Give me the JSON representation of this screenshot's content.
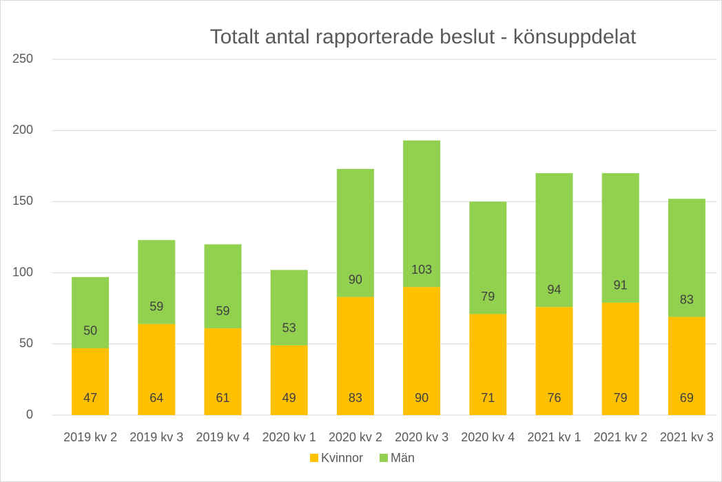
{
  "chart_data": {
    "type": "stacked_bar",
    "title": "Totalt antal rapporterade beslut - könsuppdelat",
    "categories": [
      "2019 kv 2",
      "2019 kv 3",
      "2019 kv 4",
      "2020 kv 1",
      "2020 kv 2",
      "2020 kv 3",
      "2020 kv 4",
      "2021 kv 1",
      "2021 kv 2",
      "2021 kv 3"
    ],
    "series": [
      {
        "name": "Kvinnor",
        "color": "#ffc000",
        "values": [
          47,
          64,
          61,
          49,
          83,
          90,
          71,
          76,
          79,
          69
        ]
      },
      {
        "name": "Män",
        "color": "#92d050",
        "values": [
          50,
          59,
          59,
          53,
          90,
          103,
          79,
          94,
          91,
          83
        ]
      }
    ],
    "ylim": [
      0,
      250
    ],
    "yticks": [
      0,
      50,
      100,
      150,
      200,
      250
    ],
    "grid": true,
    "legend": "bottom"
  }
}
